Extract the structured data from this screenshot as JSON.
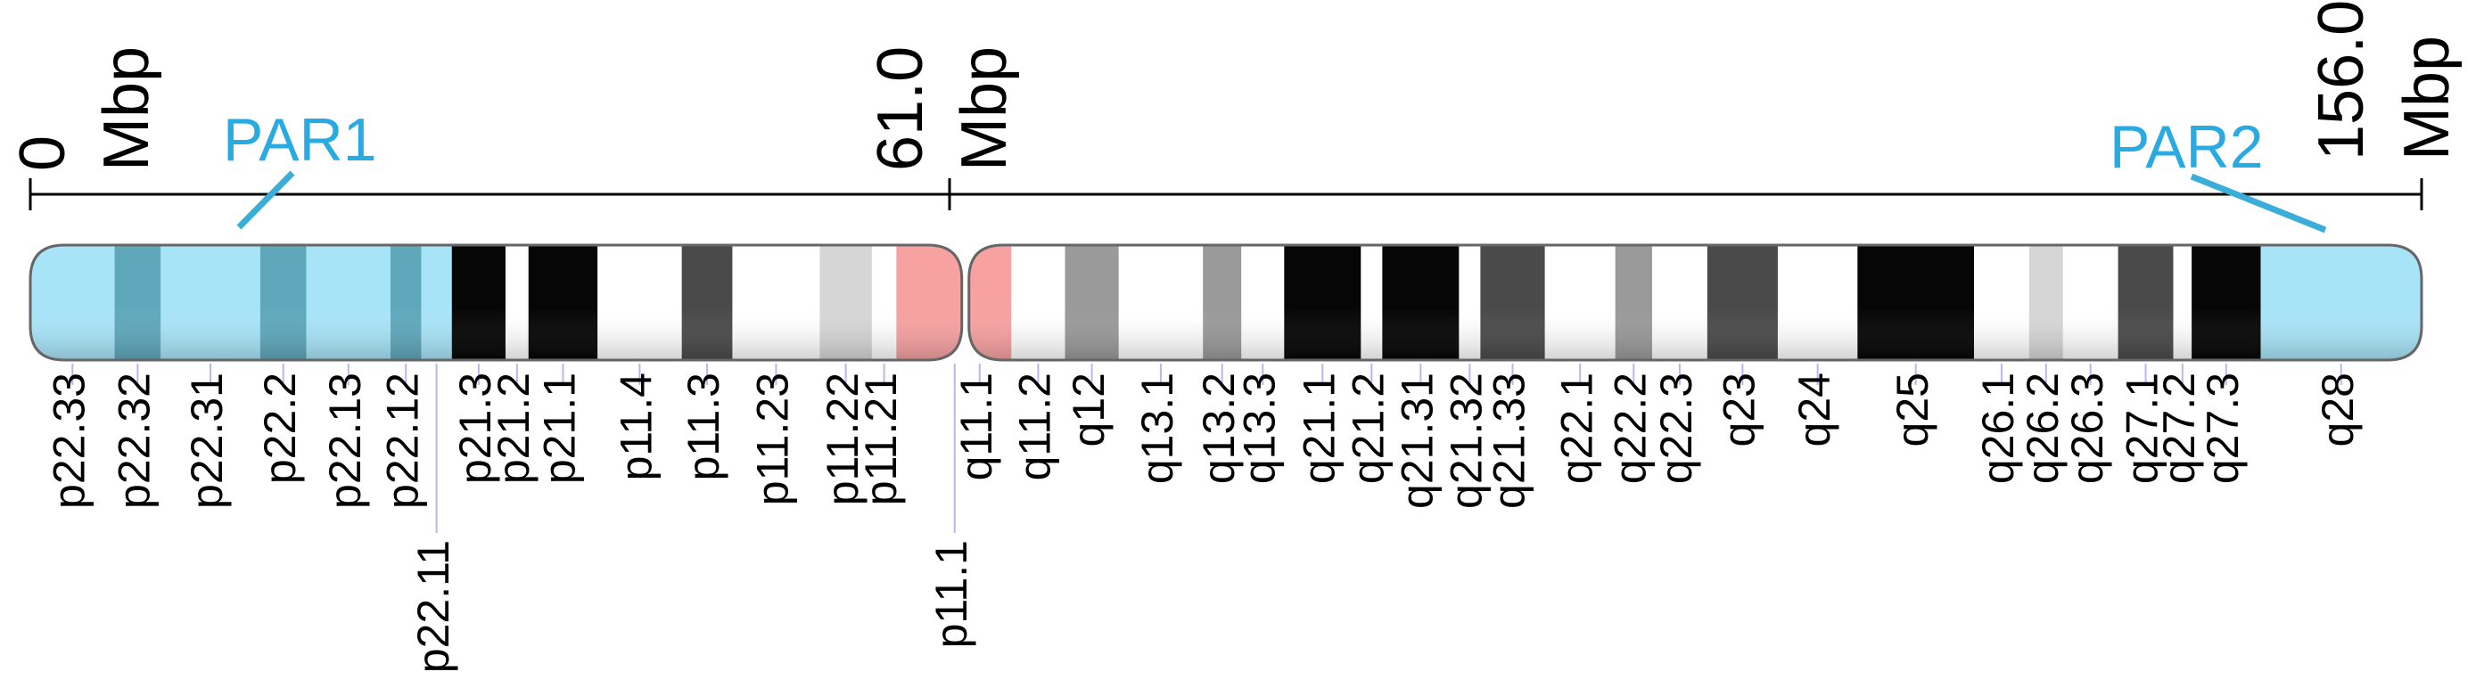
{
  "ruler": {
    "start": {
      "value": "0",
      "unit": "Mbp"
    },
    "centromere": {
      "value": "61.0",
      "unit": "Mbp"
    },
    "end": {
      "value": "156.0",
      "unit": "Mbp"
    }
  },
  "regions": {
    "par1": {
      "label": "PAR1",
      "color": "#29abe2"
    },
    "par2": {
      "label": "PAR2",
      "color": "#29abe2"
    }
  },
  "colors": {
    "par_fill": "#a8e4f7",
    "par_dark": "#5fa8bc",
    "centromere": "#f7a1a1",
    "outline": "#666666",
    "tick_line": "#b8b8ee"
  },
  "chart_data": {
    "type": "ideogram",
    "chromosome_bands": [
      {
        "name": "p22.33",
        "start": 0.0,
        "end": 5.5,
        "stain": "par"
      },
      {
        "name": "p22.32",
        "start": 5.5,
        "end": 8.5,
        "stain": "par-dark"
      },
      {
        "name": "p22.31",
        "start": 8.5,
        "end": 15.0,
        "stain": "par"
      },
      {
        "name": "p22.2",
        "start": 15.0,
        "end": 18.0,
        "stain": "par-dark"
      },
      {
        "name": "p22.13",
        "start": 18.0,
        "end": 23.5,
        "stain": "par"
      },
      {
        "name": "p22.12",
        "start": 23.5,
        "end": 25.5,
        "stain": "par-dark"
      },
      {
        "name": "p22.11",
        "start": 25.5,
        "end": 27.5,
        "stain": "par"
      },
      {
        "name": "p21.3",
        "start": 27.5,
        "end": 31.0,
        "stain": "gpos100"
      },
      {
        "name": "p21.2",
        "start": 31.0,
        "end": 32.5,
        "stain": "gneg"
      },
      {
        "name": "p21.1",
        "start": 32.5,
        "end": 37.0,
        "stain": "gpos100"
      },
      {
        "name": "p11.4",
        "start": 37.0,
        "end": 42.5,
        "stain": "gneg"
      },
      {
        "name": "p11.3",
        "start": 42.5,
        "end": 45.8,
        "stain": "gpos75"
      },
      {
        "name": "p11.23",
        "start": 45.8,
        "end": 51.5,
        "stain": "gneg"
      },
      {
        "name": "p11.22",
        "start": 51.5,
        "end": 54.9,
        "stain": "gpos25"
      },
      {
        "name": "p11.21",
        "start": 54.9,
        "end": 56.5,
        "stain": "gneg"
      },
      {
        "name": "p11.1",
        "start": 56.5,
        "end": 61.0,
        "stain": "acen"
      },
      {
        "name": "q11.1",
        "start": 61.0,
        "end": 64.0,
        "stain": "acen"
      },
      {
        "name": "q11.2",
        "start": 64.0,
        "end": 67.5,
        "stain": "gneg"
      },
      {
        "name": "q12",
        "start": 67.5,
        "end": 71.0,
        "stain": "gpos50"
      },
      {
        "name": "q13.1",
        "start": 71.0,
        "end": 76.5,
        "stain": "gneg"
      },
      {
        "name": "q13.2",
        "start": 76.5,
        "end": 79.0,
        "stain": "gpos50"
      },
      {
        "name": "q13.3",
        "start": 79.0,
        "end": 81.8,
        "stain": "gneg"
      },
      {
        "name": "q21.1",
        "start": 81.8,
        "end": 86.8,
        "stain": "gpos100"
      },
      {
        "name": "q21.2",
        "start": 86.8,
        "end": 88.2,
        "stain": "gneg"
      },
      {
        "name": "q21.31",
        "start": 88.2,
        "end": 93.2,
        "stain": "gpos100"
      },
      {
        "name": "q21.32",
        "start": 93.2,
        "end": 94.6,
        "stain": "gneg"
      },
      {
        "name": "q21.33",
        "start": 94.6,
        "end": 98.8,
        "stain": "gpos75"
      },
      {
        "name": "q22.1",
        "start": 98.8,
        "end": 103.4,
        "stain": "gneg"
      },
      {
        "name": "q22.2",
        "start": 103.4,
        "end": 105.8,
        "stain": "gpos50"
      },
      {
        "name": "q22.3",
        "start": 105.8,
        "end": 109.4,
        "stain": "gneg"
      },
      {
        "name": "q23",
        "start": 109.4,
        "end": 114.0,
        "stain": "gpos75"
      },
      {
        "name": "q24",
        "start": 114.0,
        "end": 119.2,
        "stain": "gneg"
      },
      {
        "name": "q25",
        "start": 119.2,
        "end": 126.8,
        "stain": "gpos100"
      },
      {
        "name": "q26.1",
        "start": 126.8,
        "end": 130.4,
        "stain": "gneg"
      },
      {
        "name": "q26.2",
        "start": 130.4,
        "end": 132.6,
        "stain": "gpos25"
      },
      {
        "name": "q26.3",
        "start": 132.6,
        "end": 136.2,
        "stain": "gneg"
      },
      {
        "name": "q27.1",
        "start": 136.2,
        "end": 139.8,
        "stain": "gpos75"
      },
      {
        "name": "q27.2",
        "start": 139.8,
        "end": 141.0,
        "stain": "gneg"
      },
      {
        "name": "q27.3",
        "start": 141.0,
        "end": 145.5,
        "stain": "gpos100"
      },
      {
        "name": "q28",
        "start": 145.5,
        "end": 156.0,
        "stain": "par"
      }
    ],
    "label_row2": [
      "p22.11",
      "p11.1"
    ]
  }
}
